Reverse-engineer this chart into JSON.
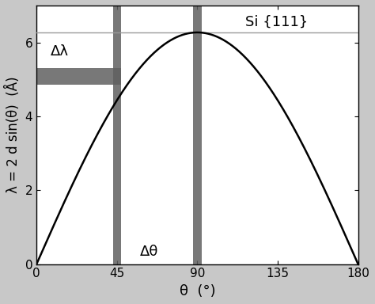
{
  "title": "Si {111}",
  "xlabel": "θ  (°)",
  "ylabel": "λ = 2 d sin(θ)  (Å)",
  "two_d": 6.271,
  "xlim": [
    0,
    180
  ],
  "ylim": [
    0,
    7.0
  ],
  "xticks": [
    0,
    45,
    90,
    135,
    180
  ],
  "yticks": [
    0,
    2,
    4,
    6
  ],
  "hline_y": 6.271,
  "hband_ymin": 4.85,
  "hband_ymax": 5.3,
  "hband_xmin": 0,
  "hband_xmax": 47.5,
  "vband1_xmin": 43.0,
  "vband1_xmax": 47.5,
  "vband2_xmin": 87.5,
  "vband2_xmax": 92.5,
  "band_color": "#606060",
  "band_alpha": 0.85,
  "hline_color": "#999999",
  "curve_color": "#000000",
  "curve_lw": 1.8,
  "label_delta_lambda": "Δλ",
  "label_delta_theta": "Δθ",
  "annotation_fontsize": 13,
  "title_fontsize": 13,
  "xlabel_fontsize": 13,
  "ylabel_fontsize": 12,
  "bg_color": "#ffffff",
  "fig_bg_color": "#c8c8c8"
}
